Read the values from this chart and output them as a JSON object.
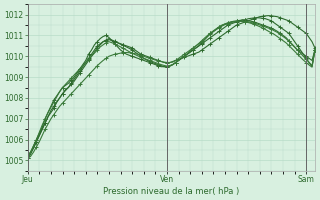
{
  "xlabel": "Pression niveau de la mer( hPa )",
  "bg_color": "#d8f0e0",
  "grid_color": "#b8dcc8",
  "line_color": "#2d6a2d",
  "day_labels": [
    "Jeu",
    "Ven",
    "Sam"
  ],
  "day_positions": [
    0,
    48,
    96
  ],
  "ylim": [
    1004.5,
    1012.5
  ],
  "yticks": [
    1005,
    1006,
    1007,
    1008,
    1009,
    1010,
    1011,
    1012
  ],
  "total_points": 100,
  "series": [
    [
      1005.2,
      1005.4,
      1005.6,
      1005.9,
      1006.2,
      1006.5,
      1006.8,
      1007.1,
      1007.3,
      1007.5,
      1007.8,
      1008.0,
      1008.2,
      1008.4,
      1008.5,
      1008.7,
      1008.9,
      1009.1,
      1009.3,
      1009.5,
      1009.7,
      1009.9,
      1010.1,
      1010.3,
      1010.5,
      1010.6,
      1010.7,
      1010.75,
      1010.8,
      1010.75,
      1010.7,
      1010.65,
      1010.6,
      1010.55,
      1010.5,
      1010.45,
      1010.4,
      1010.3,
      1010.2,
      1010.1,
      1010.05,
      1010.0,
      1009.95,
      1009.9,
      1009.85,
      1009.8,
      1009.75,
      1009.7,
      1009.7,
      1009.7,
      1009.75,
      1009.8,
      1009.85,
      1009.9,
      1009.95,
      1010.0,
      1010.05,
      1010.1,
      1010.15,
      1010.2,
      1010.3,
      1010.4,
      1010.5,
      1010.6,
      1010.7,
      1010.8,
      1010.9,
      1011.0,
      1011.1,
      1011.2,
      1011.3,
      1011.4,
      1011.5,
      1011.55,
      1011.6,
      1011.65,
      1011.7,
      1011.75,
      1011.8,
      1011.85,
      1011.9,
      1011.92,
      1011.94,
      1011.95,
      1011.94,
      1011.92,
      1011.9,
      1011.85,
      1011.8,
      1011.75,
      1011.7,
      1011.6,
      1011.5,
      1011.4,
      1011.3,
      1011.2,
      1011.1,
      1010.9,
      1010.7,
      1010.4
    ],
    [
      1005.2,
      1005.4,
      1005.7,
      1006.0,
      1006.3,
      1006.6,
      1007.0,
      1007.3,
      1007.6,
      1007.9,
      1008.1,
      1008.3,
      1008.5,
      1008.6,
      1008.7,
      1008.85,
      1009.0,
      1009.2,
      1009.4,
      1009.6,
      1009.8,
      1010.1,
      1010.3,
      1010.55,
      1010.7,
      1010.85,
      1010.95,
      1011.0,
      1010.9,
      1010.75,
      1010.6,
      1010.45,
      1010.3,
      1010.2,
      1010.1,
      1010.05,
      1010.0,
      1009.95,
      1009.9,
      1009.85,
      1009.8,
      1009.75,
      1009.7,
      1009.65,
      1009.6,
      1009.55,
      1009.5,
      1009.5,
      1009.5,
      1009.55,
      1009.6,
      1009.7,
      1009.8,
      1009.9,
      1010.0,
      1010.1,
      1010.2,
      1010.3,
      1010.4,
      1010.5,
      1010.6,
      1010.7,
      1010.8,
      1010.9,
      1011.0,
      1011.1,
      1011.2,
      1011.3,
      1011.4,
      1011.5,
      1011.55,
      1011.6,
      1011.65,
      1011.7,
      1011.75,
      1011.75,
      1011.8,
      1011.82,
      1011.84,
      1011.85,
      1011.84,
      1011.82,
      1011.8,
      1011.75,
      1011.7,
      1011.6,
      1011.5,
      1011.4,
      1011.3,
      1011.2,
      1011.1,
      1010.9,
      1010.7,
      1010.5,
      1010.3,
      1010.1,
      1009.9,
      1009.7,
      1009.5,
      1010.3
    ],
    [
      1005.1,
      1005.3,
      1005.6,
      1005.9,
      1006.2,
      1006.5,
      1006.8,
      1007.1,
      1007.4,
      1007.6,
      1007.8,
      1008.0,
      1008.2,
      1008.35,
      1008.5,
      1008.65,
      1008.8,
      1009.0,
      1009.2,
      1009.4,
      1009.6,
      1009.8,
      1010.0,
      1010.2,
      1010.4,
      1010.55,
      1010.7,
      1010.78,
      1010.85,
      1010.78,
      1010.72,
      1010.65,
      1010.58,
      1010.52,
      1010.45,
      1010.38,
      1010.3,
      1010.2,
      1010.1,
      1010.0,
      1009.9,
      1009.82,
      1009.75,
      1009.7,
      1009.65,
      1009.6,
      1009.55,
      1009.5,
      1009.5,
      1009.52,
      1009.6,
      1009.7,
      1009.8,
      1009.9,
      1010.0,
      1010.1,
      1010.2,
      1010.3,
      1010.4,
      1010.5,
      1010.65,
      1010.8,
      1010.95,
      1011.1,
      1011.2,
      1011.3,
      1011.4,
      1011.48,
      1011.55,
      1011.6,
      1011.65,
      1011.68,
      1011.7,
      1011.72,
      1011.73,
      1011.72,
      1011.7,
      1011.68,
      1011.65,
      1011.6,
      1011.55,
      1011.5,
      1011.45,
      1011.4,
      1011.35,
      1011.28,
      1011.2,
      1011.1,
      1011.0,
      1010.9,
      1010.75,
      1010.6,
      1010.45,
      1010.3,
      1010.2,
      1010.1,
      1010.0,
      1009.9,
      1009.8,
      1010.3
    ],
    [
      1005.2,
      1005.4,
      1005.7,
      1006.0,
      1006.35,
      1006.7,
      1007.0,
      1007.3,
      1007.55,
      1007.8,
      1008.05,
      1008.3,
      1008.5,
      1008.65,
      1008.8,
      1008.95,
      1009.1,
      1009.25,
      1009.4,
      1009.55,
      1009.7,
      1009.85,
      1010.0,
      1010.15,
      1010.3,
      1010.45,
      1010.55,
      1010.65,
      1010.7,
      1010.65,
      1010.6,
      1010.52,
      1010.45,
      1010.38,
      1010.3,
      1010.22,
      1010.15,
      1010.08,
      1010.02,
      1009.95,
      1009.9,
      1009.85,
      1009.8,
      1009.75,
      1009.7,
      1009.65,
      1009.6,
      1009.56,
      1009.53,
      1009.55,
      1009.6,
      1009.7,
      1009.8,
      1009.9,
      1010.0,
      1010.12,
      1010.25,
      1010.38,
      1010.5,
      1010.62,
      1010.75,
      1010.88,
      1011.0,
      1011.12,
      1011.22,
      1011.32,
      1011.42,
      1011.5,
      1011.55,
      1011.6,
      1011.63,
      1011.65,
      1011.67,
      1011.68,
      1011.68,
      1011.67,
      1011.65,
      1011.62,
      1011.58,
      1011.55,
      1011.5,
      1011.45,
      1011.4,
      1011.35,
      1011.3,
      1011.22,
      1011.15,
      1011.05,
      1010.95,
      1010.85,
      1010.72,
      1010.58,
      1010.44,
      1010.3,
      1010.15,
      1010.0,
      1009.85,
      1009.7,
      1009.55,
      1010.3
    ],
    [
      1005.1,
      1005.2,
      1005.4,
      1005.65,
      1005.9,
      1006.2,
      1006.5,
      1006.75,
      1007.0,
      1007.2,
      1007.4,
      1007.6,
      1007.75,
      1007.9,
      1008.05,
      1008.2,
      1008.35,
      1008.5,
      1008.65,
      1008.8,
      1008.95,
      1009.1,
      1009.25,
      1009.4,
      1009.55,
      1009.68,
      1009.8,
      1009.9,
      1010.0,
      1010.05,
      1010.1,
      1010.12,
      1010.15,
      1010.17,
      1010.18,
      1010.17,
      1010.15,
      1010.12,
      1010.1,
      1010.05,
      1010.0,
      1009.95,
      1009.9,
      1009.86,
      1009.82,
      1009.78,
      1009.75,
      1009.72,
      1009.7,
      1009.7,
      1009.72,
      1009.8,
      1009.9,
      1010.0,
      1010.1,
      1010.2,
      1010.3,
      1010.4,
      1010.5,
      1010.6,
      1010.7,
      1010.82,
      1010.95,
      1011.07,
      1011.18,
      1011.28,
      1011.37,
      1011.45,
      1011.52,
      1011.57,
      1011.62,
      1011.65,
      1011.67,
      1011.68,
      1011.67,
      1011.65,
      1011.62,
      1011.58,
      1011.53,
      1011.48,
      1011.42,
      1011.35,
      1011.28,
      1011.2,
      1011.12,
      1011.05,
      1010.95,
      1010.85,
      1010.75,
      1010.65,
      1010.52,
      1010.38,
      1010.24,
      1010.1,
      1009.96,
      1009.82,
      1009.7,
      1009.58,
      1009.48,
      1010.3
    ]
  ]
}
